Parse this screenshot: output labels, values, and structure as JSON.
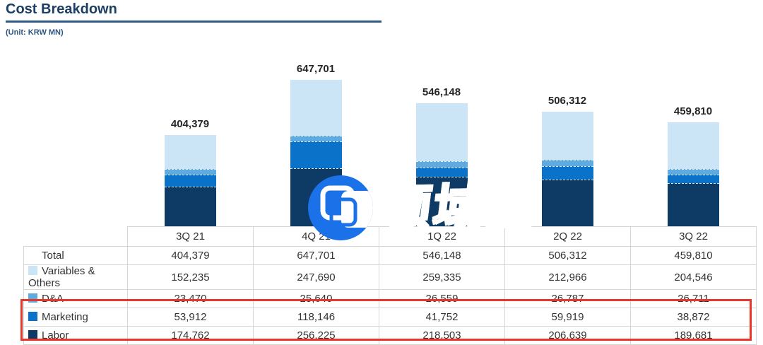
{
  "header": {
    "title": "Cost Breakdown",
    "unit_label": "(Unit: KRW MN)",
    "title_color": "#1C3F63",
    "underline_color": "#315A85"
  },
  "watermark": {
    "text": "领域圈",
    "logo": "overlapping-rounded-squares-in-circle",
    "color": "#2E7FE8",
    "circle_color": "#1B72E8"
  },
  "chart_data": {
    "type": "bar",
    "subtype": "stacked",
    "title": "Cost Breakdown",
    "unit": "KRW MN",
    "categories": [
      "3Q 21",
      "4Q 21",
      "1Q 22",
      "2Q 22",
      "3Q 22"
    ],
    "totals": [
      404379,
      647701,
      546148,
      506312,
      459810
    ],
    "series": [
      {
        "name": "Labor",
        "color": "#0E3A66",
        "values": [
          174762,
          256225,
          218503,
          206639,
          189681
        ]
      },
      {
        "name": "Marketing",
        "color": "#0A72C8",
        "values": [
          53912,
          118146,
          41752,
          59919,
          38872
        ]
      },
      {
        "name": "D&A",
        "color": "#5FAADF",
        "values": [
          23470,
          25640,
          26559,
          26787,
          26711
        ]
      },
      {
        "name": "Variables & Others",
        "color": "#CBE4F6",
        "values": [
          152235,
          247690,
          259335,
          212966,
          204546
        ]
      }
    ],
    "value_labels_on_top": true,
    "gridlines": false,
    "legend_position": "table-row-labels"
  },
  "table": {
    "column_headers": [
      "3Q 21",
      "4Q 21",
      "1Q 22",
      "2Q 22",
      "3Q 22"
    ],
    "rows": [
      {
        "label": "Total",
        "swatch": null,
        "values": [
          404379,
          647701,
          546148,
          506312,
          459810
        ]
      },
      {
        "label": "Variables & Others",
        "swatch": "#CBE4F6",
        "values": [
          152235,
          247690,
          259335,
          212966,
          204546
        ]
      },
      {
        "label": "D&A",
        "swatch": "#5FAADF",
        "values": [
          23470,
          25640,
          26559,
          26787,
          26711
        ]
      },
      {
        "label": "Marketing",
        "swatch": "#0A72C8",
        "values": [
          53912,
          118146,
          41752,
          59919,
          38872
        ]
      },
      {
        "label": "Labor",
        "swatch": "#0E3A66",
        "values": [
          174762,
          256225,
          218503,
          206639,
          189681
        ]
      }
    ],
    "highlight": {
      "rows": [
        "Marketing",
        "Labor"
      ],
      "color": "#E8362A"
    }
  }
}
